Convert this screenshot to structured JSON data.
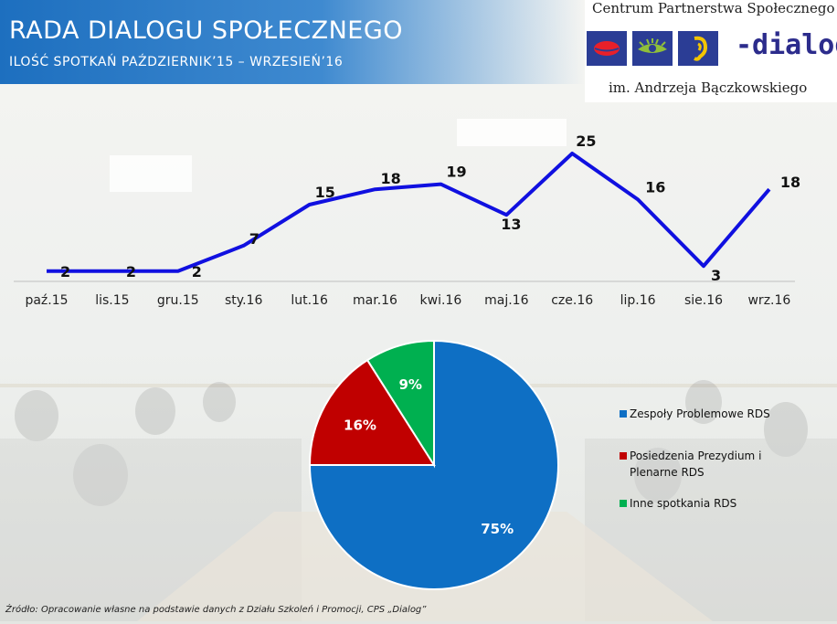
{
  "header": {
    "title": "RADA DIALOGU SPOŁECZNEGO",
    "subtitle": "ILOŚĆ SPOTKAŃ PAŹDZIERNIK’15 – WRZESIEŃ’16"
  },
  "logo": {
    "org_name": "Centrum Partnerstwa Społecznego",
    "brand": "-dialog",
    "dedication": "im. Andrzeja Bączkowskiego",
    "icons": [
      "mouth-icon",
      "eye-icon",
      "ear-icon"
    ]
  },
  "colors": {
    "header_blue": "#1d6fbf",
    "line": "#1010e0",
    "pie_blue": "#0e6fc4",
    "pie_red": "#c00000",
    "pie_green": "#00b050"
  },
  "chart_data": [
    {
      "type": "line",
      "categories": [
        "paź.15",
        "lis.15",
        "gru.15",
        "sty.16",
        "lut.16",
        "mar.16",
        "kwi.16",
        "maj.16",
        "cze.16",
        "lip.16",
        "sie.16",
        "wrz.16"
      ],
      "series": [
        {
          "values": [
            2,
            2,
            2,
            7,
            15,
            18,
            19,
            13,
            25,
            16,
            3,
            18
          ]
        }
      ],
      "data_labels": [
        "2",
        "2",
        "2",
        "7",
        "15",
        "18",
        "19",
        "13",
        "25",
        "16",
        "3",
        "18"
      ],
      "grid": false
    },
    {
      "type": "pie",
      "slices": [
        {
          "name": "Zespoły Problemowe RDS",
          "value": 75,
          "label": "75%"
        },
        {
          "name": "Posiedzenia Prezydium i Plenarne RDS",
          "value": 16,
          "label": "16%"
        },
        {
          "name": "Inne spotkania RDS",
          "value": 9,
          "label": "9%"
        }
      ],
      "legend_position": "right"
    }
  ],
  "source": "Źródło: Opracowanie własne na podstawie danych z Działu Szkoleń i Promocji, CPS „Dialog”"
}
